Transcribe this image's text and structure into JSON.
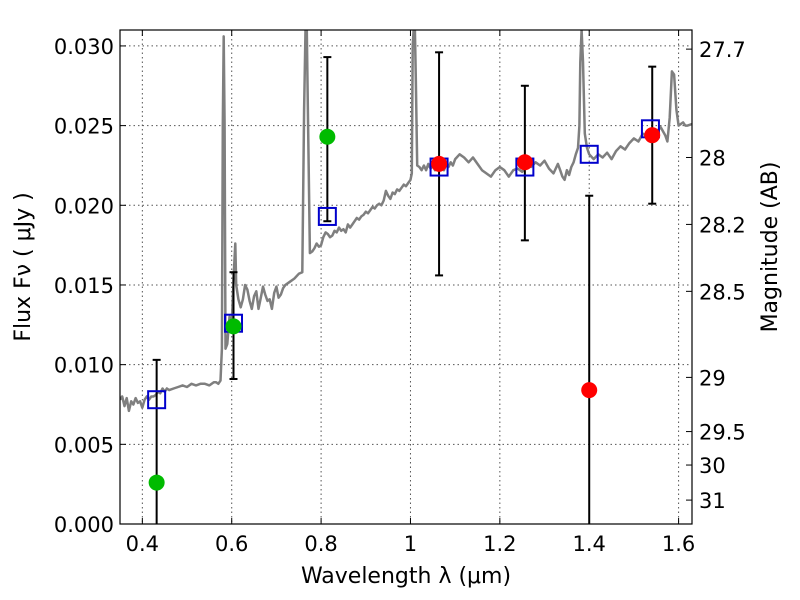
{
  "chart_data": {
    "type": "scatter",
    "xlabel": "Wavelength  λ (μm)",
    "ylabel": "Flux  Fν  ( μJy )",
    "ylabel_right": "Magnitude (AB)",
    "xlim": [
      0.35,
      1.63
    ],
    "ylim": [
      0.0,
      0.031
    ],
    "grid": true,
    "x_ticks": [
      {
        "value": 0.4,
        "label": "0.4"
      },
      {
        "value": 0.6,
        "label": "0.6"
      },
      {
        "value": 0.8,
        "label": "0.8"
      },
      {
        "value": 1.0,
        "label": "1"
      },
      {
        "value": 1.2,
        "label": "1.2"
      },
      {
        "value": 1.4,
        "label": "1.4"
      },
      {
        "value": 1.6,
        "label": "1.6"
      }
    ],
    "y_ticks": [
      {
        "value": 0.0,
        "label": "0.000"
      },
      {
        "value": 0.005,
        "label": "0.005"
      },
      {
        "value": 0.01,
        "label": "0.010"
      },
      {
        "value": 0.015,
        "label": "0.015"
      },
      {
        "value": 0.02,
        "label": "0.020"
      },
      {
        "value": 0.025,
        "label": "0.025"
      },
      {
        "value": 0.03,
        "label": "0.030"
      }
    ],
    "right_ticks": [
      {
        "flux": 0.0298,
        "label": "27.7"
      },
      {
        "flux": 0.023,
        "label": "28"
      },
      {
        "flux": 0.0188,
        "label": "28.2"
      },
      {
        "flux": 0.0146,
        "label": "28.5"
      },
      {
        "flux": 0.0092,
        "label": "29"
      },
      {
        "flux": 0.0058,
        "label": "29.5"
      },
      {
        "flux": 0.0037,
        "label": "30"
      },
      {
        "flux": 0.0015,
        "label": "31"
      }
    ],
    "spectrum": {
      "color": "#7f7f7f",
      "points": [
        [
          0.35,
          0.0078
        ],
        [
          0.355,
          0.008
        ],
        [
          0.36,
          0.0074
        ],
        [
          0.365,
          0.0079
        ],
        [
          0.37,
          0.0071
        ],
        [
          0.375,
          0.0077
        ],
        [
          0.38,
          0.0075
        ],
        [
          0.385,
          0.0079
        ],
        [
          0.39,
          0.0076
        ],
        [
          0.395,
          0.0077
        ],
        [
          0.4,
          0.0073
        ],
        [
          0.405,
          0.0078
        ],
        [
          0.41,
          0.008
        ],
        [
          0.415,
          0.0078
        ],
        [
          0.42,
          0.008
        ],
        [
          0.425,
          0.008
        ],
        [
          0.43,
          0.0081
        ],
        [
          0.435,
          0.0083
        ],
        [
          0.44,
          0.0082
        ],
        [
          0.445,
          0.0085
        ],
        [
          0.45,
          0.0083
        ],
        [
          0.455,
          0.0085
        ],
        [
          0.46,
          0.0084
        ],
        [
          0.47,
          0.0085
        ],
        [
          0.48,
          0.0086
        ],
        [
          0.49,
          0.0087
        ],
        [
          0.5,
          0.0086
        ],
        [
          0.51,
          0.0088
        ],
        [
          0.52,
          0.0087
        ],
        [
          0.53,
          0.0088
        ],
        [
          0.54,
          0.0088
        ],
        [
          0.55,
          0.0087
        ],
        [
          0.56,
          0.0089
        ],
        [
          0.565,
          0.0089
        ],
        [
          0.57,
          0.0088
        ],
        [
          0.575,
          0.009
        ],
        [
          0.578,
          0.011
        ],
        [
          0.58,
          0.025
        ],
        [
          0.582,
          0.0306
        ],
        [
          0.584,
          0.025
        ],
        [
          0.586,
          0.011
        ],
        [
          0.59,
          0.0113
        ],
        [
          0.595,
          0.013
        ],
        [
          0.6,
          0.0125
        ],
        [
          0.605,
          0.016
        ],
        [
          0.608,
          0.0176
        ],
        [
          0.61,
          0.015
        ],
        [
          0.615,
          0.0141
        ],
        [
          0.62,
          0.0136
        ],
        [
          0.625,
          0.0141
        ],
        [
          0.63,
          0.015
        ],
        [
          0.635,
          0.0147
        ],
        [
          0.64,
          0.014
        ],
        [
          0.645,
          0.0135
        ],
        [
          0.65,
          0.0143
        ],
        [
          0.655,
          0.0146
        ],
        [
          0.66,
          0.0135
        ],
        [
          0.665,
          0.0142
        ],
        [
          0.67,
          0.0149
        ],
        [
          0.675,
          0.0144
        ],
        [
          0.68,
          0.014
        ],
        [
          0.685,
          0.0141
        ],
        [
          0.69,
          0.0135
        ],
        [
          0.695,
          0.0145
        ],
        [
          0.7,
          0.0149
        ],
        [
          0.705,
          0.0142
        ],
        [
          0.71,
          0.0144
        ],
        [
          0.715,
          0.0148
        ],
        [
          0.72,
          0.015
        ],
        [
          0.73,
          0.0152
        ],
        [
          0.74,
          0.0154
        ],
        [
          0.75,
          0.0157
        ],
        [
          0.758,
          0.0158
        ],
        [
          0.762,
          0.026
        ],
        [
          0.765,
          0.031
        ],
        [
          0.768,
          0.031
        ],
        [
          0.771,
          0.025
        ],
        [
          0.775,
          0.017
        ],
        [
          0.78,
          0.0171
        ],
        [
          0.785,
          0.0173
        ],
        [
          0.79,
          0.0176
        ],
        [
          0.795,
          0.0174
        ],
        [
          0.8,
          0.0175
        ],
        [
          0.805,
          0.018
        ],
        [
          0.81,
          0.0183
        ],
        [
          0.815,
          0.0182
        ],
        [
          0.82,
          0.018
        ],
        [
          0.825,
          0.0181
        ],
        [
          0.83,
          0.0184
        ],
        [
          0.835,
          0.0183
        ],
        [
          0.84,
          0.0186
        ],
        [
          0.845,
          0.0184
        ],
        [
          0.85,
          0.0185
        ],
        [
          0.855,
          0.0183
        ],
        [
          0.86,
          0.0188
        ],
        [
          0.865,
          0.0186
        ],
        [
          0.87,
          0.0188
        ],
        [
          0.875,
          0.019
        ],
        [
          0.88,
          0.0192
        ],
        [
          0.885,
          0.0191
        ],
        [
          0.89,
          0.0193
        ],
        [
          0.895,
          0.0194
        ],
        [
          0.9,
          0.0196
        ],
        [
          0.905,
          0.0195
        ],
        [
          0.91,
          0.0197
        ],
        [
          0.915,
          0.0199
        ],
        [
          0.92,
          0.0198
        ],
        [
          0.925,
          0.02
        ],
        [
          0.93,
          0.0201
        ],
        [
          0.935,
          0.02
        ],
        [
          0.94,
          0.0203
        ],
        [
          0.945,
          0.0209
        ],
        [
          0.95,
          0.0206
        ],
        [
          0.955,
          0.0204
        ],
        [
          0.96,
          0.0208
        ],
        [
          0.965,
          0.0207
        ],
        [
          0.97,
          0.021
        ],
        [
          0.975,
          0.0209
        ],
        [
          0.98,
          0.0211
        ],
        [
          0.985,
          0.0213
        ],
        [
          0.99,
          0.0212
        ],
        [
          0.995,
          0.0214
        ],
        [
          1.0,
          0.0216
        ],
        [
          1.003,
          0.022
        ],
        [
          1.005,
          0.03
        ],
        [
          1.007,
          0.031
        ],
        [
          1.01,
          0.031
        ],
        [
          1.012,
          0.028
        ],
        [
          1.015,
          0.0225
        ],
        [
          1.02,
          0.0224
        ],
        [
          1.025,
          0.0222
        ],
        [
          1.03,
          0.0225
        ],
        [
          1.035,
          0.0222
        ],
        [
          1.04,
          0.0226
        ],
        [
          1.045,
          0.0223
        ],
        [
          1.05,
          0.0225
        ],
        [
          1.055,
          0.0222
        ],
        [
          1.06,
          0.0226
        ],
        [
          1.065,
          0.0224
        ],
        [
          1.07,
          0.0225
        ],
        [
          1.075,
          0.0222
        ],
        [
          1.08,
          0.0226
        ],
        [
          1.085,
          0.0224
        ],
        [
          1.09,
          0.0227
        ],
        [
          1.095,
          0.0225
        ],
        [
          1.1,
          0.0229
        ],
        [
          1.11,
          0.0232
        ],
        [
          1.12,
          0.023
        ],
        [
          1.13,
          0.0227
        ],
        [
          1.14,
          0.023
        ],
        [
          1.15,
          0.0226
        ],
        [
          1.16,
          0.0222
        ],
        [
          1.17,
          0.022
        ],
        [
          1.18,
          0.0218
        ],
        [
          1.19,
          0.0222
        ],
        [
          1.2,
          0.0224
        ],
        [
          1.21,
          0.0222
        ],
        [
          1.22,
          0.0218
        ],
        [
          1.23,
          0.0222
        ],
        [
          1.24,
          0.0223
        ],
        [
          1.25,
          0.0221
        ],
        [
          1.26,
          0.0225
        ],
        [
          1.27,
          0.0224
        ],
        [
          1.28,
          0.0227
        ],
        [
          1.29,
          0.0225
        ],
        [
          1.3,
          0.0228
        ],
        [
          1.31,
          0.0223
        ],
        [
          1.32,
          0.022
        ],
        [
          1.33,
          0.0226
        ],
        [
          1.335,
          0.0222
        ],
        [
          1.34,
          0.0218
        ],
        [
          1.345,
          0.0216
        ],
        [
          1.35,
          0.0222
        ],
        [
          1.355,
          0.0219
        ],
        [
          1.36,
          0.0224
        ],
        [
          1.365,
          0.0227
        ],
        [
          1.37,
          0.0232
        ],
        [
          1.375,
          0.0236
        ],
        [
          1.378,
          0.025
        ],
        [
          1.38,
          0.029
        ],
        [
          1.383,
          0.031
        ],
        [
          1.386,
          0.029
        ],
        [
          1.39,
          0.0245
        ],
        [
          1.395,
          0.0236
        ],
        [
          1.4,
          0.0232
        ],
        [
          1.41,
          0.0229
        ],
        [
          1.42,
          0.0232
        ],
        [
          1.43,
          0.023
        ],
        [
          1.44,
          0.0233
        ],
        [
          1.45,
          0.0229
        ],
        [
          1.46,
          0.0234
        ],
        [
          1.47,
          0.0237
        ],
        [
          1.48,
          0.0235
        ],
        [
          1.49,
          0.0239
        ],
        [
          1.5,
          0.0242
        ],
        [
          1.51,
          0.024
        ],
        [
          1.52,
          0.0245
        ],
        [
          1.53,
          0.0243
        ],
        [
          1.54,
          0.0247
        ],
        [
          1.55,
          0.0246
        ],
        [
          1.56,
          0.0249
        ],
        [
          1.57,
          0.0244
        ],
        [
          1.575,
          0.024
        ],
        [
          1.58,
          0.0255
        ],
        [
          1.585,
          0.0284
        ],
        [
          1.59,
          0.0282
        ],
        [
          1.595,
          0.026
        ],
        [
          1.6,
          0.025
        ],
        [
          1.605,
          0.0251
        ],
        [
          1.61,
          0.0252
        ],
        [
          1.615,
          0.025
        ],
        [
          1.62,
          0.025
        ],
        [
          1.63,
          0.0251
        ]
      ]
    },
    "model_points": {
      "color": "#0000cc",
      "points": [
        {
          "x": 0.432,
          "y": 0.0078
        },
        {
          "x": 0.604,
          "y": 0.0126
        },
        {
          "x": 0.814,
          "y": 0.0193
        },
        {
          "x": 1.064,
          "y": 0.0224
        },
        {
          "x": 1.256,
          "y": 0.0224
        },
        {
          "x": 1.4,
          "y": 0.0232
        },
        {
          "x": 1.537,
          "y": 0.0248
        }
      ]
    },
    "observed_points": {
      "color": "#00bb00",
      "points": [
        {
          "x": 0.432,
          "y": 0.0026,
          "yerr_low": 0.0026,
          "yerr_high": 0.0077
        },
        {
          "x": 0.604,
          "y": 0.0124,
          "yerr_low": 0.0033,
          "yerr_high": 0.0034
        },
        {
          "x": 0.814,
          "y": 0.0243,
          "yerr_low": 0.0053,
          "yerr_high": 0.005
        }
      ]
    },
    "red_points": {
      "color": "#ff0000",
      "points": [
        {
          "x": 1.064,
          "y": 0.0226,
          "yerr_low": 0.007,
          "yerr_high": 0.007
        },
        {
          "x": 1.256,
          "y": 0.0227,
          "yerr_low": 0.0049,
          "yerr_high": 0.0048
        },
        {
          "x": 1.4,
          "y": 0.0084,
          "yerr_low": 0.0084,
          "yerr_high": 0.0122
        },
        {
          "x": 1.541,
          "y": 0.0244,
          "yerr_low": 0.0043,
          "yerr_high": 0.0043
        }
      ]
    }
  }
}
